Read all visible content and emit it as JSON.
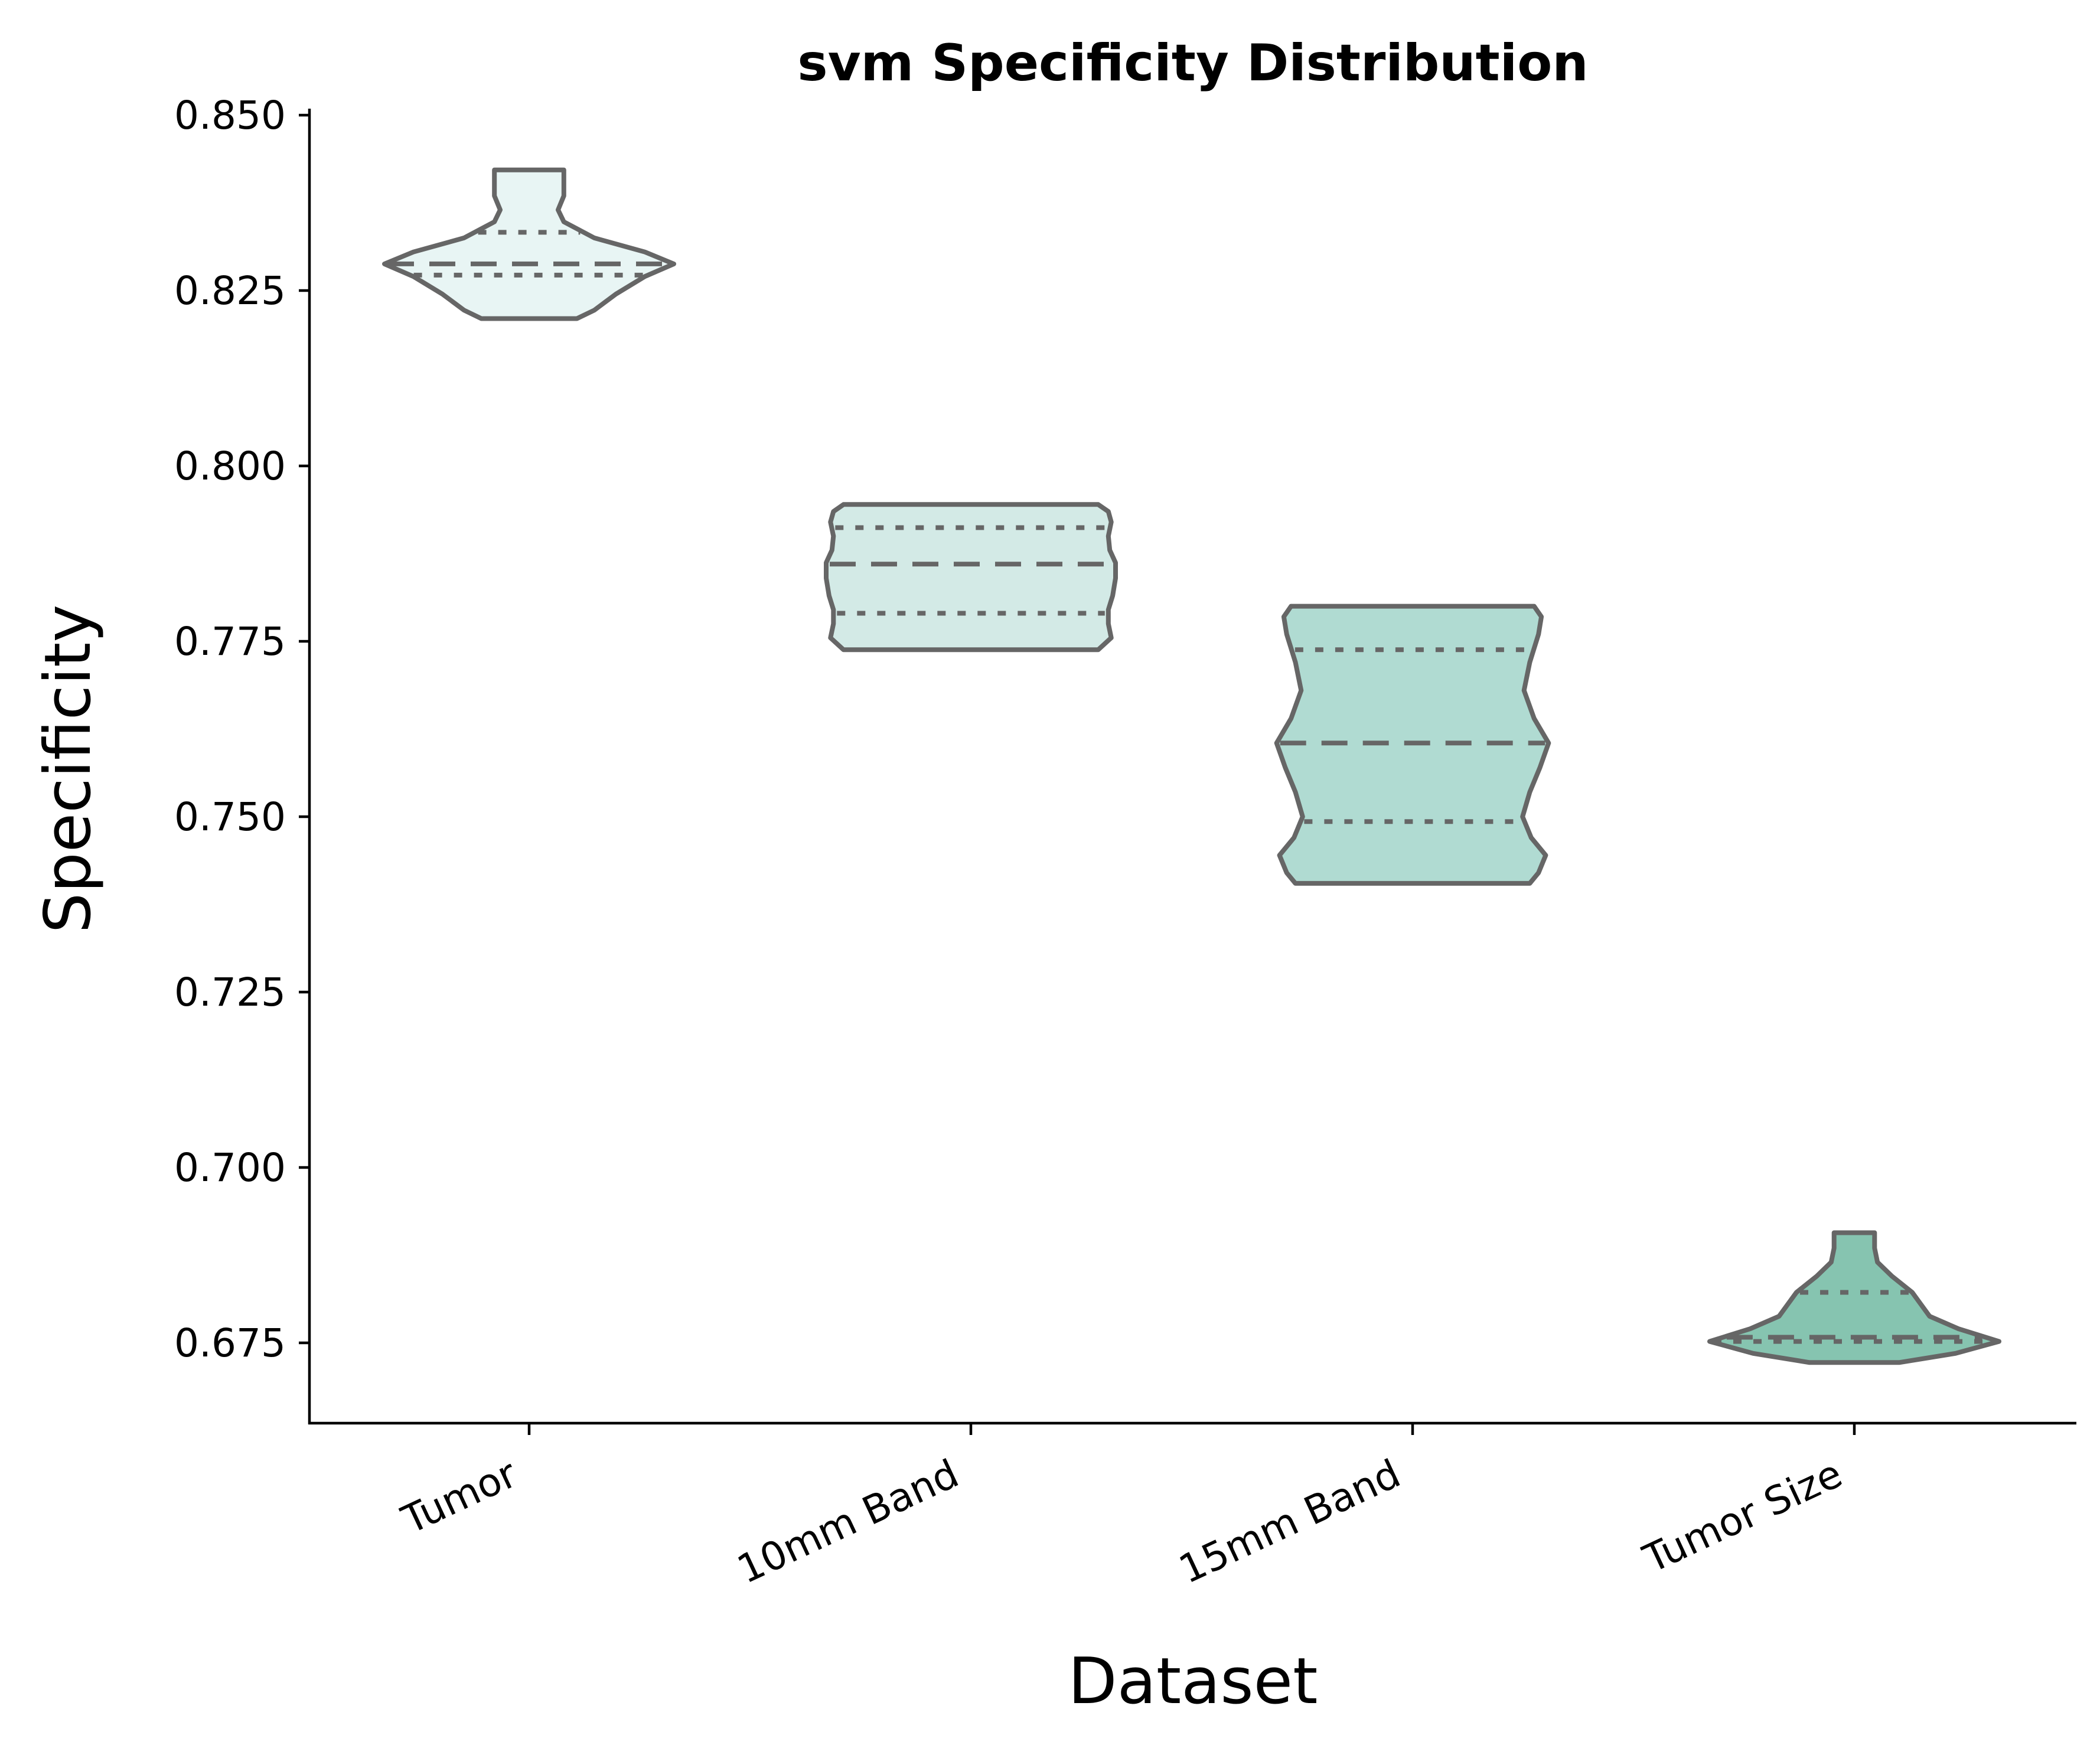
{
  "chart_data": {
    "type": "violin",
    "title": "svm Specificity Distribution",
    "xlabel": "Dataset",
    "ylabel": "Specificity",
    "ylim": [
      0.6635,
      0.8515
    ],
    "yticks": [
      0.675,
      0.7,
      0.725,
      0.75,
      0.775,
      0.8,
      0.825,
      0.85
    ],
    "ytick_labels": [
      "0.675",
      "0.700",
      "0.725",
      "0.750",
      "0.775",
      "0.800",
      "0.825",
      "0.850"
    ],
    "categories": [
      "Tumor",
      "10mm Band",
      "15mm Band",
      "Tumor Size"
    ],
    "grid": false,
    "legend": "none",
    "outline_color": "#666666",
    "violins": [
      {
        "category": "Tumor",
        "color": "#e8f5f4",
        "min": 0.821,
        "max": 0.8422,
        "q1": 0.8272,
        "median": 0.8288,
        "q3": 0.8333,
        "profile": [
          [
            0.821,
            0.33
          ],
          [
            0.8222,
            0.45
          ],
          [
            0.8245,
            0.6
          ],
          [
            0.827,
            0.8
          ],
          [
            0.8288,
            1.0
          ],
          [
            0.8305,
            0.8
          ],
          [
            0.8325,
            0.45
          ],
          [
            0.8348,
            0.24
          ],
          [
            0.8365,
            0.2
          ],
          [
            0.8385,
            0.24
          ],
          [
            0.8405,
            0.24
          ],
          [
            0.8422,
            0.24
          ]
        ]
      },
      {
        "category": "10mm Band",
        "color": "#d3eae6",
        "min": 0.7738,
        "max": 0.7945,
        "q1": 0.779,
        "median": 0.786,
        "q3": 0.7912,
        "profile": [
          [
            0.7738,
            0.88
          ],
          [
            0.7755,
            0.97
          ],
          [
            0.7775,
            0.95
          ],
          [
            0.7795,
            0.95
          ],
          [
            0.7815,
            0.98
          ],
          [
            0.784,
            1.0
          ],
          [
            0.7862,
            1.0
          ],
          [
            0.788,
            0.96
          ],
          [
            0.79,
            0.95
          ],
          [
            0.792,
            0.97
          ],
          [
            0.7935,
            0.95
          ],
          [
            0.7945,
            0.88
          ]
        ]
      },
      {
        "category": "15mm Band",
        "color": "#b0dbd2",
        "min": 0.7405,
        "max": 0.78,
        "q1": 0.7493,
        "median": 0.7605,
        "q3": 0.7738,
        "profile": [
          [
            0.7405,
            0.81
          ],
          [
            0.742,
            0.87
          ],
          [
            0.7445,
            0.92
          ],
          [
            0.747,
            0.82
          ],
          [
            0.75,
            0.76
          ],
          [
            0.7535,
            0.81
          ],
          [
            0.757,
            0.88
          ],
          [
            0.7605,
            0.94
          ],
          [
            0.764,
            0.84
          ],
          [
            0.768,
            0.77
          ],
          [
            0.772,
            0.81
          ],
          [
            0.776,
            0.87
          ],
          [
            0.7785,
            0.89
          ],
          [
            0.78,
            0.84
          ]
        ]
      },
      {
        "category": "Tumor Size",
        "color": "#86c4b0",
        "min": 0.6722,
        "max": 0.6907,
        "q1": 0.6752,
        "median": 0.6758,
        "q3": 0.6822,
        "profile": [
          [
            0.6722,
            0.31
          ],
          [
            0.6735,
            0.7
          ],
          [
            0.6752,
            1.0
          ],
          [
            0.677,
            0.72
          ],
          [
            0.6788,
            0.52
          ],
          [
            0.6805,
            0.46
          ],
          [
            0.6822,
            0.4
          ],
          [
            0.6845,
            0.26
          ],
          [
            0.6865,
            0.16
          ],
          [
            0.6885,
            0.14
          ],
          [
            0.6898,
            0.14
          ],
          [
            0.6907,
            0.14
          ]
        ]
      }
    ]
  }
}
